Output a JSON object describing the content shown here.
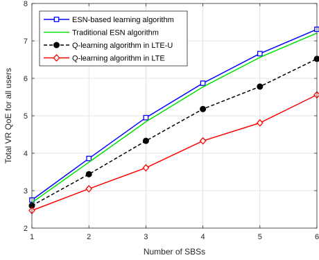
{
  "chart_data": {
    "type": "line",
    "xlabel": "Number of SBSs",
    "ylabel": "Total VR QoE for all users",
    "xlim": [
      1,
      6
    ],
    "ylim": [
      2,
      8
    ],
    "xticks": [
      "1",
      "2",
      "3",
      "4",
      "5",
      "6"
    ],
    "yticks": [
      "2",
      "3",
      "4",
      "5",
      "6",
      "7",
      "8"
    ],
    "grid": true,
    "legend_position": "top-left",
    "x": [
      1,
      2,
      3,
      4,
      5,
      6
    ],
    "series": [
      {
        "name": "ESN-based learning algorithm",
        "color": "#0000ff",
        "marker": "square",
        "dash": "solid",
        "values": [
          2.75,
          3.86,
          4.95,
          5.87,
          6.66,
          7.31
        ]
      },
      {
        "name": "Traditional ESN algorithm",
        "color": "#00e000",
        "marker": "none",
        "dash": "solid",
        "values": [
          2.68,
          3.76,
          4.84,
          5.77,
          6.56,
          7.21
        ]
      },
      {
        "name": "Q-learning algorithm in LTE-U",
        "color": "#000000",
        "marker": "circle",
        "dash": "dashed",
        "values": [
          2.6,
          3.44,
          4.33,
          5.18,
          5.78,
          6.52
        ]
      },
      {
        "name": "Q-learning algorithm in LTE",
        "color": "#ff0000",
        "marker": "diamond",
        "dash": "solid",
        "values": [
          2.47,
          3.05,
          3.61,
          4.33,
          4.81,
          5.56
        ]
      }
    ]
  }
}
